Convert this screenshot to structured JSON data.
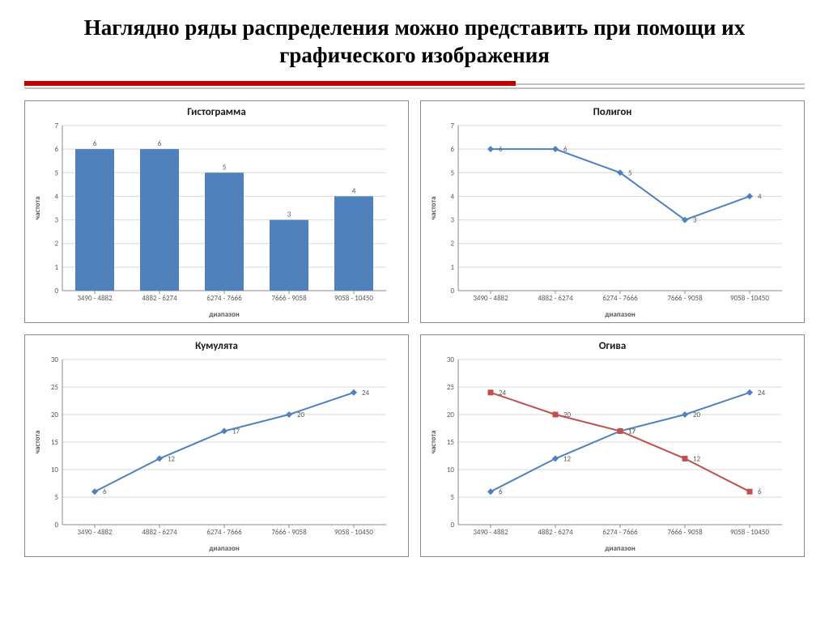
{
  "page_title": "Наглядно ряды распределения можно представить при помощи их графического изображения",
  "rule": {
    "red": "#c00000",
    "grey": "#bfbfbf"
  },
  "common": {
    "categories": [
      "3490 - 4882",
      "4882 - 6274",
      "6274 - 7666",
      "7666 - 9058",
      "9058 - 10450"
    ],
    "x_axis_label": "диапазон",
    "y_axis_label": "частота",
    "grid_color": "#d9d9d9",
    "axis_color": "#888888",
    "tick_font_size": 9,
    "background": "#ffffff"
  },
  "charts": {
    "histogram": {
      "title": "Гистограмма",
      "type": "bar",
      "values": [
        6,
        6,
        5,
        3,
        4
      ],
      "bar_color": "#4f81bd",
      "ylim": [
        0,
        7
      ],
      "ytick_step": 1,
      "bar_width": 0.6
    },
    "polygon": {
      "title": "Полигон",
      "type": "line",
      "values": [
        6,
        6,
        5,
        3,
        4
      ],
      "line_color": "#4f81bd",
      "marker": "diamond",
      "ylim": [
        0,
        7
      ],
      "ytick_step": 1
    },
    "cumulate": {
      "title": "Кумулята",
      "type": "line",
      "values": [
        6,
        12,
        17,
        20,
        24
      ],
      "line_color": "#4f81bd",
      "marker": "diamond",
      "ylim": [
        0,
        30
      ],
      "ytick_step": 5
    },
    "ogive": {
      "title": "Огива",
      "type": "line2",
      "series": [
        {
          "name": "asc",
          "values": [
            6,
            12,
            17,
            20,
            24
          ],
          "color": "#4f81bd",
          "marker": "diamond"
        },
        {
          "name": "desc",
          "values": [
            24,
            20,
            17,
            12,
            6
          ],
          "color": "#c0504d",
          "marker": "square"
        }
      ],
      "ylim": [
        0,
        30
      ],
      "ytick_step": 5
    }
  }
}
